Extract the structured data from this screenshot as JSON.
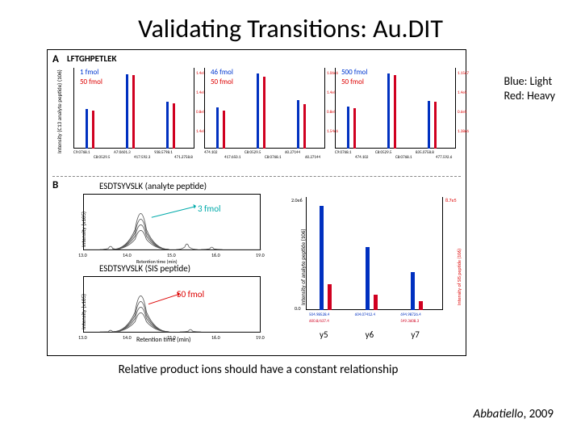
{
  "title": "Validating Transitions: Au.DIT",
  "legend": {
    "l1": "Blue: Light",
    "l2": "Red: Heavy"
  },
  "caption": "Relative product ions should have a constant relationship",
  "citation": {
    "name": "Abbatiello",
    "year": ", 2009"
  },
  "panelA": {
    "label": "A",
    "peptide": "LFTGHPETLEK",
    "ylabel": "Intensity (C13 analyte peptide) (106)",
    "charts": [
      {
        "blue_label": "1 fmol",
        "red_label": "50 fmol",
        "scale_left": "100%",
        "bars": [
          {
            "c": "blue",
            "h": 0.52
          },
          {
            "c": "red",
            "h": 0.5
          },
          {
            "c": "blue",
            "h": 0.98
          },
          {
            "c": "red",
            "h": 0.97
          },
          {
            "c": "blue",
            "h": 0.62
          },
          {
            "c": "red",
            "h": 0.6
          }
        ],
        "ticks": [
          "C9:0768.1",
          "C8:0529.5",
          "A7:0601.3",
          "417:592.3",
          "938.5798.1",
          "471.2758.8"
        ],
        "right_vals": [
          "1.4e5",
          "1.4e5",
          "0.8e5",
          "1.4e5"
        ]
      },
      {
        "blue_label": "46 fmol",
        "red_label": "50 fmol",
        "bars": [
          {
            "c": "blue",
            "h": 0.54
          },
          {
            "c": "red",
            "h": 0.5
          },
          {
            "c": "blue",
            "h": 0.99
          },
          {
            "c": "red",
            "h": 0.95
          },
          {
            "c": "blue",
            "h": 0.64
          },
          {
            "c": "red",
            "h": 0.58
          }
        ],
        "ticks": [
          "474.102",
          "417:650.1",
          "C8:0529.5",
          "C8:0768.1",
          "60.27144",
          "60.27144"
        ],
        "right_vals": [
          "1.06e6",
          "1.4e5",
          "0.8e5",
          "1.54e6"
        ]
      },
      {
        "blue_label": "500 fmol",
        "red_label": "50 fmol",
        "bars": [
          {
            "c": "blue",
            "h": 0.55
          },
          {
            "c": "red",
            "h": 0.53
          },
          {
            "c": "blue",
            "h": 0.99
          },
          {
            "c": "red",
            "h": 0.97
          },
          {
            "c": "blue",
            "h": 0.63
          },
          {
            "c": "red",
            "h": 0.62
          }
        ],
        "ticks": [
          "C9:0768.1",
          "474.102",
          "C8:0529.5",
          "C8:0768.1",
          "835.0758.8",
          "477.592.6"
        ],
        "right_vals": [
          "1.15e7",
          "1.4e5",
          "0.6e5",
          "1.38e6"
        ]
      }
    ]
  },
  "panelB": {
    "label": "B",
    "analyte_title": "ESDTSYVSLK (analyte peptide)",
    "sis_title": "ESDTSYVSLK (SIS peptide)",
    "ylabel_top": "Intensity (x105)",
    "ylabel_bot": "Intensity (x105)",
    "xlabel": "Retention time (min)",
    "x_ticks": [
      "13.0",
      "14.0",
      "15.0",
      "16.0",
      "19.0"
    ],
    "analyte_annot": "3 fmol",
    "sis_annot": "50 fmol",
    "chrom_analyte": {
      "stroke": "#555",
      "peak_x": 0.32,
      "peak_h": 0.95,
      "width": 0.08,
      "minor_peaks": [
        {
          "x": 0.15,
          "h": 0.12
        },
        {
          "x": 0.58,
          "h": 0.18
        },
        {
          "x": 0.72,
          "h": 0.1
        }
      ]
    },
    "chrom_sis": {
      "stroke": "#555",
      "peak_x": 0.32,
      "peak_h": 0.95,
      "width": 0.08,
      "minor_peaks": [
        {
          "x": 0.15,
          "h": 0.08
        },
        {
          "x": 0.6,
          "h": 0.1
        }
      ]
    },
    "right_chart": {
      "ylabel_left": "Intensity of analyte peptide (106)",
      "ylabel_right": "Intensity of SIS peptide (106)",
      "yions": [
        "y5",
        "y6",
        "y7"
      ],
      "bars": [
        {
          "c": "blue",
          "h": 0.96
        },
        {
          "c": "red",
          "h": 0.24
        },
        {
          "c": "blue",
          "h": 0.58
        },
        {
          "c": "red",
          "h": 0.14
        },
        {
          "c": "blue",
          "h": 0.35
        },
        {
          "c": "red",
          "h": 0.08
        }
      ],
      "ticks_top": [
        "504.98528.4",
        "604.07412.4",
        "694.98726.4"
      ],
      "ticks_bot": [
        "600.8/637.4",
        "",
        "549.3608.3"
      ],
      "left_scale": "2.0e6",
      "left_scale_bot": "0.0",
      "right_scale": "8.7e5"
    }
  },
  "colors": {
    "blue": "#0030c0",
    "red": "#d00020",
    "teal": "#0aa",
    "axis": "#000000"
  }
}
